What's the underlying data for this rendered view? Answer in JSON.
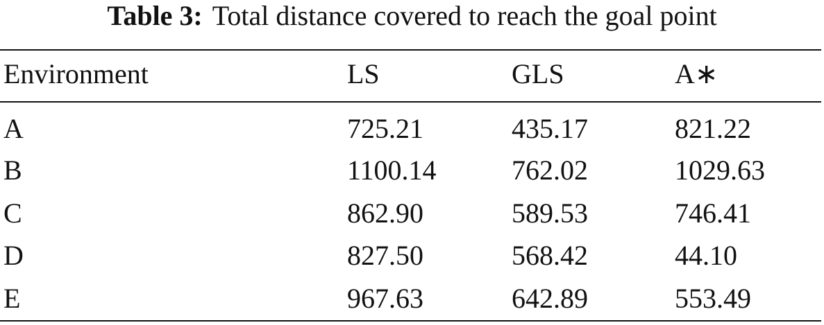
{
  "caption": {
    "label": "Table 3:",
    "text": "Total distance covered to reach the goal point"
  },
  "table": {
    "header": [
      "Environment",
      "LS",
      "GLS",
      "A∗"
    ],
    "rows": [
      [
        "A",
        "725.21",
        "435.17",
        "821.22"
      ],
      [
        "B",
        "1100.14",
        "762.02",
        "1029.63"
      ],
      [
        "C",
        "862.90",
        "589.53",
        "746.41"
      ],
      [
        "D",
        "827.50",
        "568.42",
        "44.10"
      ],
      [
        "E",
        "967.63",
        "642.89",
        "553.49"
      ]
    ]
  }
}
